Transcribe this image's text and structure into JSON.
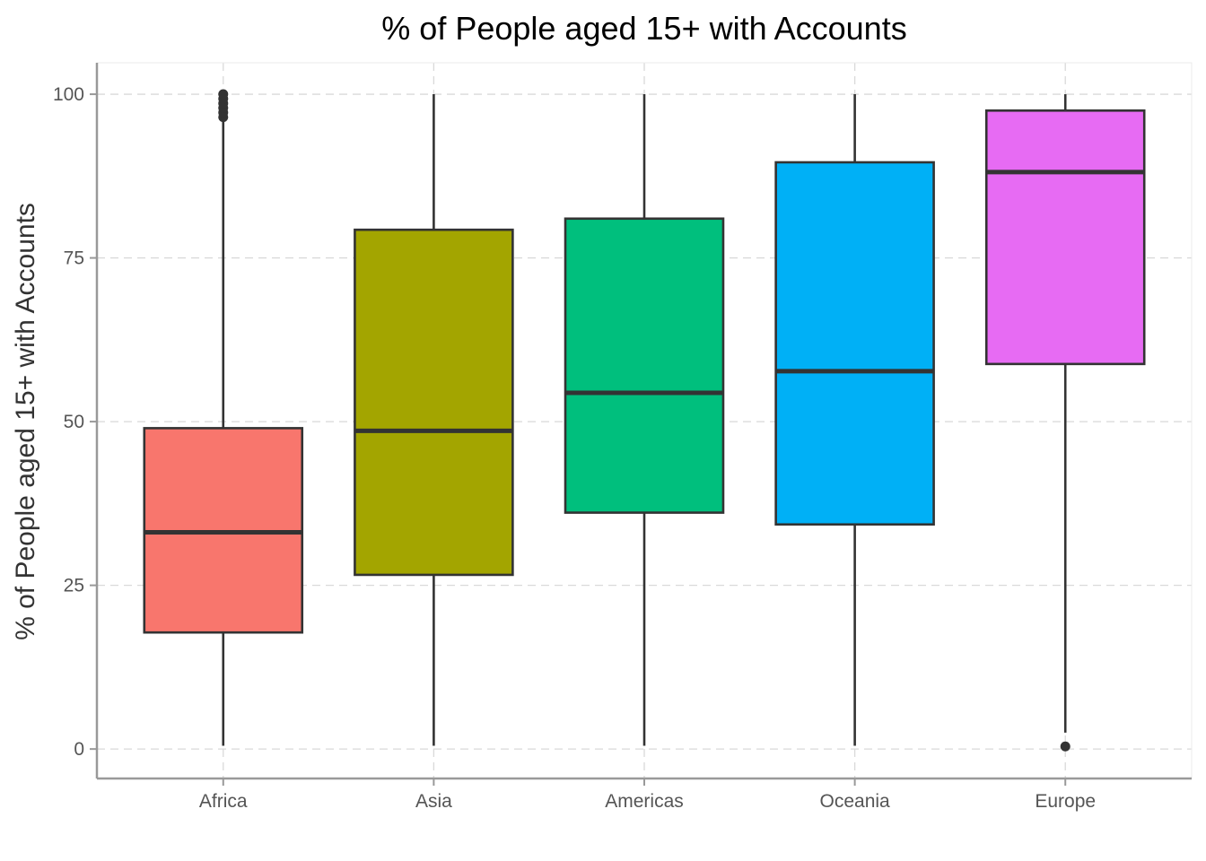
{
  "chart_data": {
    "type": "box",
    "title": "% of People aged 15+ with Accounts",
    "xlabel": "",
    "ylabel": "% of People aged 15+ with Accounts",
    "ylim": [
      -4.5,
      104.8
    ],
    "yticks": [
      0,
      25,
      50,
      75,
      100
    ],
    "grid": true,
    "legend": "none",
    "categories": [
      "Africa",
      "Asia",
      "Americas",
      "Oceania",
      "Europe"
    ],
    "boxes": [
      {
        "category": "Africa",
        "color": "#F8766D",
        "min": 0.5,
        "q1": 17.8,
        "median": 33.1,
        "q3": 49.0,
        "max": 96.0,
        "outliers": [
          96.5,
          97.2,
          97.9,
          98.6,
          99.3,
          100.0
        ]
      },
      {
        "category": "Asia",
        "color": "#A3A500",
        "min": 0.5,
        "q1": 26.6,
        "median": 48.6,
        "q3": 79.3,
        "max": 100.0,
        "outliers": []
      },
      {
        "category": "Americas",
        "color": "#00BF7D",
        "min": 0.5,
        "q1": 36.1,
        "median": 54.4,
        "q3": 81.0,
        "max": 100.0,
        "outliers": []
      },
      {
        "category": "Oceania",
        "color": "#00B0F6",
        "min": 0.5,
        "q1": 34.3,
        "median": 57.7,
        "q3": 89.6,
        "max": 100.0,
        "outliers": []
      },
      {
        "category": "Europe",
        "color": "#E76BF3",
        "min": 2.5,
        "q1": 58.8,
        "median": 88.1,
        "q3": 97.5,
        "max": 100.0,
        "outliers": [
          0.4
        ]
      }
    ]
  }
}
